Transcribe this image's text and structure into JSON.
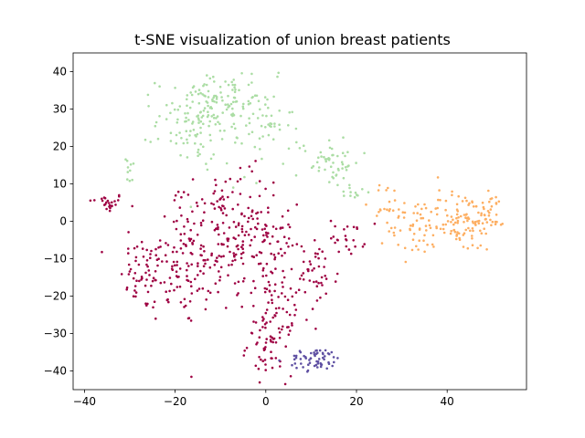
{
  "chart_data": {
    "type": "scatter",
    "title": "t-SNE visualization of union breast patients",
    "xlabel": "",
    "ylabel": "",
    "xlim": [
      -42.5,
      57.5
    ],
    "ylim": [
      -45,
      45
    ],
    "x_ticks": [
      -40,
      -20,
      0,
      20,
      40
    ],
    "x_tick_labels": [
      "−40",
      "−20",
      "0",
      "20",
      "40"
    ],
    "y_ticks": [
      -40,
      -30,
      -20,
      -10,
      0,
      10,
      20,
      30,
      40
    ],
    "y_tick_labels": [
      "−40",
      "−30",
      "−20",
      "−10",
      "0",
      "10",
      "20",
      "30",
      "40"
    ],
    "grid": false,
    "legend": "none",
    "series": [
      {
        "color": "#9e0142",
        "clusters": [
          {
            "cx": -35,
            "cy": 5,
            "sx": 2,
            "sy": 1.3,
            "n": 25
          },
          {
            "cx": -27,
            "cy": -14,
            "sx": 2.5,
            "sy": 5,
            "n": 45
          },
          {
            "cx": -20,
            "cy": -12,
            "sx": 4,
            "sy": 8,
            "n": 90
          },
          {
            "cx": -11,
            "cy": -8,
            "sx": 3.5,
            "sy": 8,
            "n": 100
          },
          {
            "cx": -3,
            "cy": -2,
            "sx": 3,
            "sy": 9,
            "n": 75
          },
          {
            "cx": 2,
            "cy": -15,
            "sx": 2.5,
            "sy": 10,
            "n": 90
          },
          {
            "cx": 1,
            "cy": -33,
            "sx": 2.5,
            "sy": 4,
            "n": 55
          },
          {
            "cx": 11,
            "cy": -15,
            "sx": 2.5,
            "sy": 5,
            "n": 45
          },
          {
            "cx": 18,
            "cy": -4,
            "sx": 2,
            "sy": 2.5,
            "n": 25
          },
          {
            "cx": -14,
            "cy": 6,
            "sx": 4,
            "sy": 2.5,
            "n": 30
          }
        ]
      },
      {
        "color": "#abdda4",
        "clusters": [
          {
            "cx": -14,
            "cy": 27,
            "sx": 5,
            "sy": 6,
            "n": 140
          },
          {
            "cx": -9,
            "cy": 33,
            "sx": 5,
            "sy": 3,
            "n": 50
          },
          {
            "cx": 0,
            "cy": 25,
            "sx": 3,
            "sy": 6,
            "n": 45
          },
          {
            "cx": -30,
            "cy": 13,
            "sx": 0.8,
            "sy": 2,
            "n": 10
          },
          {
            "cx": 14,
            "cy": 16,
            "sx": 3.5,
            "sy": 3.5,
            "n": 55
          },
          {
            "cx": 20,
            "cy": 8,
            "sx": 1.5,
            "sy": 1.5,
            "n": 10
          }
        ]
      },
      {
        "color": "#fdae61",
        "clusters": [
          {
            "cx": 33,
            "cy": -2,
            "sx": 3,
            "sy": 4,
            "n": 45
          },
          {
            "cx": 43,
            "cy": 0,
            "sx": 4,
            "sy": 4,
            "n": 110
          },
          {
            "cx": 50,
            "cy": 3,
            "sx": 1.5,
            "sy": 2.5,
            "n": 25
          },
          {
            "cx": 27,
            "cy": 5,
            "sx": 2,
            "sy": 3,
            "n": 20
          }
        ]
      },
      {
        "color": "#5e4fa2",
        "clusters": [
          {
            "cx": 11,
            "cy": -37,
            "sx": 3,
            "sy": 1.5,
            "n": 60
          }
        ]
      }
    ]
  }
}
